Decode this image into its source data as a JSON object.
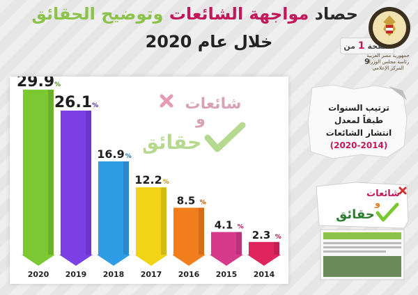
{
  "header": {
    "title_a": "حصاد ",
    "title_b": "مواجهة الشائعات",
    "title_c": " وتوضيح الحقائق",
    "subtitle": "خلال عام 2020",
    "page_prefix": "صفحة",
    "page_num": "1",
    "page_suffix": "من 9",
    "emblem_lines": [
      "جمهورية مصر العربية",
      "رئاسة مجلس الوزراء",
      "المركز الإعلامي"
    ]
  },
  "side": {
    "line1": "ترتيب السنوات",
    "line2": "طبقاً لمعدل",
    "line3": "انتشار الشائعات",
    "range": "(2020-2014)"
  },
  "logo": {
    "word_rumors": "شائعات",
    "word_and": "و",
    "word_facts": "حقائق"
  },
  "colors": {
    "accent": "#c2185b",
    "green": "#8bc34a"
  },
  "chart_data": {
    "type": "bar",
    "categories": [
      "2020",
      "2019",
      "2018",
      "2017",
      "2016",
      "2015",
      "2014"
    ],
    "values": [
      29.9,
      26.1,
      16.9,
      12.2,
      8.5,
      4.1,
      2.3
    ],
    "value_labels": [
      "29.9",
      "26.1",
      "16.9",
      "12.2",
      "8.5",
      "4.1",
      "2.3"
    ],
    "unit": "%",
    "colors": [
      "#7cc832",
      "#7b3fe4",
      "#2f9ce6",
      "#f2d417",
      "#f27d1c",
      "#d63a8a",
      "#e0245e"
    ],
    "label_colors": [
      "#4d8f1b",
      "#4b2aa0",
      "#1b6fb0",
      "#b89a06",
      "#c0540b",
      "#9c1f61",
      "#b01340"
    ],
    "title": "",
    "xlabel": "",
    "ylabel": "",
    "ylim": [
      0,
      30
    ]
  }
}
